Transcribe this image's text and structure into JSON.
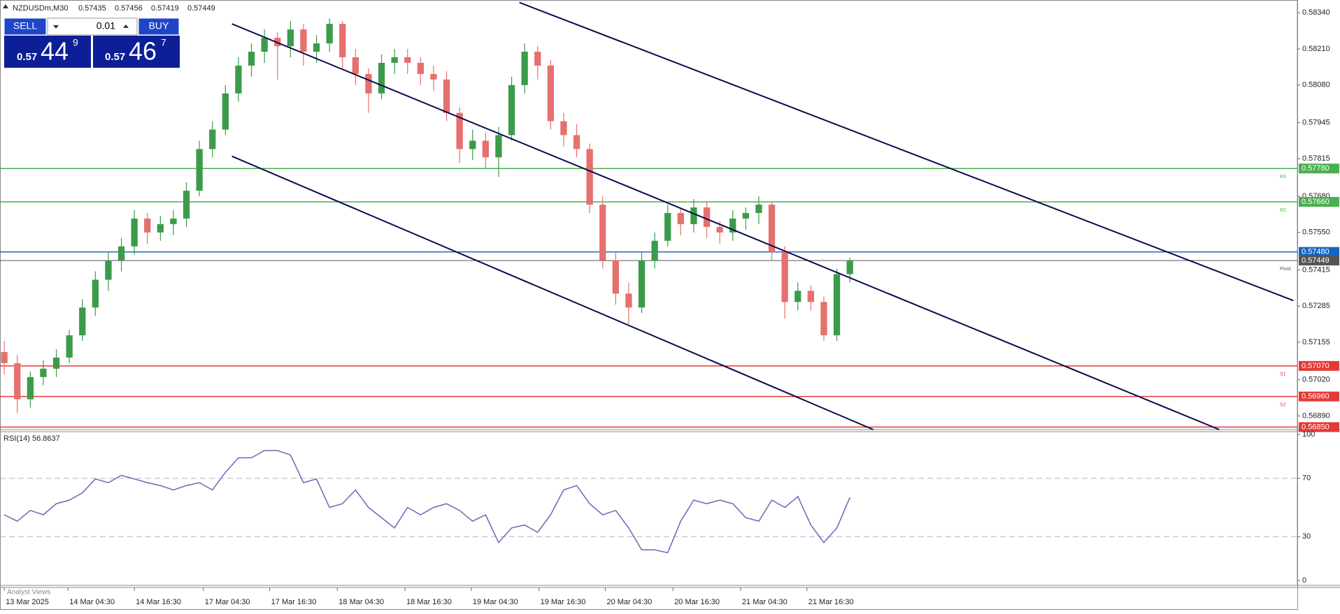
{
  "chart_data": {
    "type": "candlestick",
    "quote": {
      "symbol": "NZDUSDm,M30",
      "open": 0.57435,
      "high": 0.57456,
      "low": 0.57419,
      "close": 0.57449
    },
    "xlim": [
      -0.33,
      99.4
    ],
    "ylim": [
      0.56841,
      0.58386
    ],
    "yticks": [
      {
        "value": 0.5834,
        "label": "0.58340"
      },
      {
        "value": 0.5821,
        "label": "0.58210"
      },
      {
        "value": 0.5808,
        "label": "0.58080"
      },
      {
        "value": 0.57945,
        "label": "0.57945"
      },
      {
        "value": 0.57815,
        "label": "0.57815"
      },
      {
        "value": 0.5768,
        "label": "0.57680"
      },
      {
        "value": 0.5755,
        "label": "0.57550"
      },
      {
        "value": 0.57415,
        "label": "0.57415"
      },
      {
        "value": 0.57285,
        "label": "0.57285"
      },
      {
        "value": 0.57155,
        "label": "0.57155"
      },
      {
        "value": 0.5702,
        "label": "0.57020"
      },
      {
        "value": 0.5689,
        "label": "0.56890"
      }
    ],
    "xticks": [
      {
        "value": 0,
        "label": "13 Mar 2025"
      },
      {
        "value": 4.9,
        "label": "14 Mar 04:30"
      },
      {
        "value": 10.0,
        "label": "14 Mar 16:30"
      },
      {
        "value": 15.3,
        "label": "17 Mar 04:30"
      },
      {
        "value": 20.4,
        "label": "17 Mar 16:30"
      },
      {
        "value": 25.6,
        "label": "18 Mar 04:30"
      },
      {
        "value": 30.8,
        "label": "18 Mar 16:30"
      },
      {
        "value": 35.9,
        "label": "19 Mar 04:30"
      },
      {
        "value": 41.1,
        "label": "19 Mar 16:30"
      },
      {
        "value": 46.2,
        "label": "20 Mar 04:30"
      },
      {
        "value": 51.4,
        "label": "20 Mar 16:30"
      },
      {
        "value": 56.6,
        "label": "21 Mar 04:30"
      },
      {
        "value": 61.7,
        "label": "21 Mar 16:30"
      }
    ],
    "up_color": "#3c9b4a",
    "down_color": "#e5706e",
    "ohlc": [
      [
        0.5712,
        0.5716,
        0.5704,
        0.5708
      ],
      [
        0.5708,
        0.5711,
        0.569,
        0.5695
      ],
      [
        0.5695,
        0.5705,
        0.5692,
        0.5703
      ],
      [
        0.5703,
        0.5709,
        0.57,
        0.5706
      ],
      [
        0.5706,
        0.5713,
        0.5703,
        0.571
      ],
      [
        0.571,
        0.572,
        0.5708,
        0.5718
      ],
      [
        0.5718,
        0.5731,
        0.5716,
        0.5728
      ],
      [
        0.5728,
        0.5741,
        0.5725,
        0.5738
      ],
      [
        0.5738,
        0.5748,
        0.5734,
        0.5745
      ],
      [
        0.5745,
        0.5753,
        0.5741,
        0.575
      ],
      [
        0.575,
        0.5763,
        0.5747,
        0.576
      ],
      [
        0.576,
        0.5762,
        0.5751,
        0.5755
      ],
      [
        0.5755,
        0.5761,
        0.5752,
        0.5758
      ],
      [
        0.5758,
        0.5763,
        0.5754,
        0.576
      ],
      [
        0.576,
        0.5773,
        0.5757,
        0.577
      ],
      [
        0.577,
        0.5788,
        0.5768,
        0.5785
      ],
      [
        0.5785,
        0.5795,
        0.5782,
        0.5792
      ],
      [
        0.5792,
        0.5808,
        0.579,
        0.5805
      ],
      [
        0.5805,
        0.5818,
        0.5802,
        0.5815
      ],
      [
        0.5815,
        0.5823,
        0.5811,
        0.582
      ],
      [
        0.582,
        0.5828,
        0.5816,
        0.5825
      ],
      [
        0.5825,
        0.5827,
        0.581,
        0.5822
      ],
      [
        0.5822,
        0.5831,
        0.5818,
        0.5828
      ],
      [
        0.5828,
        0.583,
        0.5815,
        0.582
      ],
      [
        0.582,
        0.5826,
        0.5816,
        0.5823
      ],
      [
        0.5823,
        0.5832,
        0.582,
        0.583
      ],
      [
        0.583,
        0.5831,
        0.5814,
        0.5818
      ],
      [
        0.5818,
        0.5821,
        0.5808,
        0.5812
      ],
      [
        0.5812,
        0.5814,
        0.5798,
        0.5805
      ],
      [
        0.5805,
        0.5819,
        0.5803,
        0.5816
      ],
      [
        0.5816,
        0.5821,
        0.5812,
        0.5818
      ],
      [
        0.5818,
        0.5821,
        0.5812,
        0.5816
      ],
      [
        0.5816,
        0.5818,
        0.5808,
        0.5812
      ],
      [
        0.5812,
        0.5815,
        0.5806,
        0.581
      ],
      [
        0.581,
        0.5813,
        0.5795,
        0.5798
      ],
      [
        0.5798,
        0.58,
        0.578,
        0.5785
      ],
      [
        0.5785,
        0.5792,
        0.5781,
        0.5788
      ],
      [
        0.5788,
        0.5791,
        0.5778,
        0.5782
      ],
      [
        0.5782,
        0.5793,
        0.5775,
        0.579
      ],
      [
        0.579,
        0.5811,
        0.5788,
        0.5808
      ],
      [
        0.5808,
        0.5823,
        0.5805,
        0.582
      ],
      [
        0.582,
        0.5822,
        0.581,
        0.5815
      ],
      [
        0.5815,
        0.5817,
        0.5792,
        0.5795
      ],
      [
        0.5795,
        0.5798,
        0.5786,
        0.579
      ],
      [
        0.579,
        0.5794,
        0.5782,
        0.5785
      ],
      [
        0.5785,
        0.5787,
        0.5762,
        0.5765
      ],
      [
        0.5765,
        0.5768,
        0.5742,
        0.5745
      ],
      [
        0.5745,
        0.5748,
        0.5729,
        0.5733
      ],
      [
        0.5733,
        0.5737,
        0.5722,
        0.5728
      ],
      [
        0.5728,
        0.5748,
        0.5726,
        0.5745
      ],
      [
        0.5745,
        0.5755,
        0.5742,
        0.5752
      ],
      [
        0.5752,
        0.5765,
        0.575,
        0.5762
      ],
      [
        0.5762,
        0.5764,
        0.5754,
        0.5758
      ],
      [
        0.5758,
        0.5767,
        0.5755,
        0.5764
      ],
      [
        0.5764,
        0.5766,
        0.5753,
        0.5757
      ],
      [
        0.5757,
        0.5759,
        0.5751,
        0.5755
      ],
      [
        0.5755,
        0.5763,
        0.5752,
        0.576
      ],
      [
        0.576,
        0.5764,
        0.5756,
        0.5762
      ],
      [
        0.5762,
        0.5768,
        0.5758,
        0.5765
      ],
      [
        0.5765,
        0.5766,
        0.5745,
        0.5748
      ],
      [
        0.5748,
        0.575,
        0.5724,
        0.573
      ],
      [
        0.573,
        0.5737,
        0.5727,
        0.5734
      ],
      [
        0.5734,
        0.5736,
        0.5727,
        0.573
      ],
      [
        0.573,
        0.5732,
        0.5716,
        0.5718
      ],
      [
        0.5718,
        0.5742,
        0.5716,
        0.574
      ],
      [
        0.574,
        0.5746,
        0.5737,
        0.57449
      ]
    ],
    "levels": [
      {
        "name": "R3",
        "value": 0.5778,
        "label": "0.57780",
        "color": "#4caf50"
      },
      {
        "name": "R2",
        "value": 0.5766,
        "label": "0.57660",
        "color": "#4caf50"
      },
      {
        "value": 0.5748,
        "label": "0.57480",
        "color": "#1565c0"
      },
      {
        "name": "Pivot",
        "value": 0.57449,
        "label": "0.57449",
        "color": "#555555"
      },
      {
        "name": "S1",
        "value": 0.5707,
        "label": "0.57070",
        "color": "#e53935"
      },
      {
        "name": "S2",
        "value": 0.5696,
        "label": "0.56960",
        "color": "#e53935"
      },
      {
        "value": 0.5685,
        "label": "0.56850",
        "color": "#e53935"
      }
    ],
    "trendline_color": "#0b0b4d",
    "trendlines": [
      {
        "x": [
          39.6,
          99.1
        ],
        "y": [
          0.58377,
          0.57305
        ]
      },
      {
        "x": [
          17.5,
          93.4
        ],
        "y": [
          0.583,
          0.56841
        ]
      },
      {
        "x": [
          17.5,
          66.8
        ],
        "y": [
          0.57824,
          0.56841
        ]
      }
    ],
    "rsi": {
      "title": "RSI(14) 56.8637",
      "color": "#7461b8",
      "ylim": [
        0,
        100
      ],
      "yticks": [
        0,
        30,
        70,
        100
      ],
      "levels": [
        30,
        70
      ],
      "values": [
        45,
        40.6,
        48,
        45,
        52.6,
        55,
        60,
        69.5,
        67,
        72,
        69.5,
        67,
        65,
        62,
        65,
        67,
        62,
        74,
        84,
        84,
        89,
        89,
        86,
        67,
        69.5,
        50,
        52.6,
        62,
        50,
        43,
        36,
        50,
        45,
        50,
        52.6,
        48,
        40.6,
        45,
        26,
        36,
        38,
        33,
        45,
        62,
        65,
        52.6,
        45,
        48,
        36,
        21,
        21,
        19,
        40.6,
        55,
        52.6,
        55,
        52.6,
        43,
        40.6,
        55,
        50,
        57.5,
        38,
        26,
        36,
        56.8637
      ]
    }
  },
  "trade_panel": {
    "sell": "SELL",
    "buy": "BUY",
    "lot": 0.01,
    "bid": {
      "big": "0.57",
      "pips": "44",
      "point": "9"
    },
    "ask": {
      "big": "0.57",
      "pips": "46",
      "point": "7"
    }
  },
  "footer": "Analyst Views"
}
